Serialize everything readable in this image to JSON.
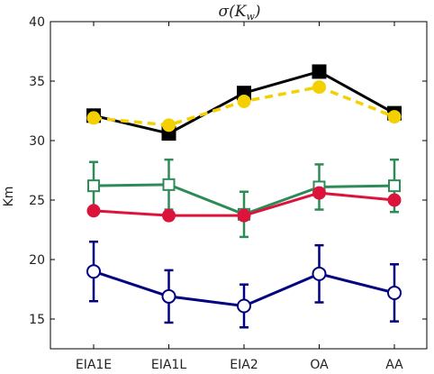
{
  "chart_data": {
    "type": "line",
    "title": "σ(K_w)",
    "title_parts": {
      "main": "σ(K",
      "sub": "w",
      "close": ")"
    },
    "xlabel": "",
    "ylabel": "Km",
    "categories": [
      "EIA1E",
      "EIA1L",
      "EIA2",
      "OA",
      "AA"
    ],
    "yticks": [
      "15",
      "20",
      "25",
      "30",
      "35",
      "40"
    ],
    "ylim": [
      12.5,
      40
    ],
    "grid": false,
    "legend": "none",
    "series": [
      {
        "values": [
          32.1,
          30.6,
          34.0,
          35.8,
          32.3
        ],
        "color": "#000000",
        "dashed": false,
        "marker": "square",
        "filled": true
      },
      {
        "values": [
          31.9,
          31.3,
          33.3,
          34.5,
          32.0
        ],
        "color": "#f5d000",
        "dashed": true,
        "marker": "circle",
        "filled": true
      },
      {
        "values": [
          26.2,
          26.3,
          23.8,
          26.1,
          26.2
        ],
        "errors": [
          2.0,
          2.1,
          1.9,
          1.9,
          2.2
        ],
        "color": "#2e8b57",
        "dashed": false,
        "marker": "square",
        "filled": false
      },
      {
        "values": [
          24.1,
          23.7,
          23.7,
          25.6,
          25.0
        ],
        "color": "#dc143c",
        "dashed": false,
        "marker": "circle",
        "filled": true
      },
      {
        "values": [
          19.0,
          16.9,
          16.1,
          18.8,
          17.2
        ],
        "errors": [
          2.5,
          2.2,
          1.8,
          2.4,
          2.4
        ],
        "color": "#000080",
        "dashed": false,
        "marker": "circle",
        "filled": false
      }
    ]
  }
}
